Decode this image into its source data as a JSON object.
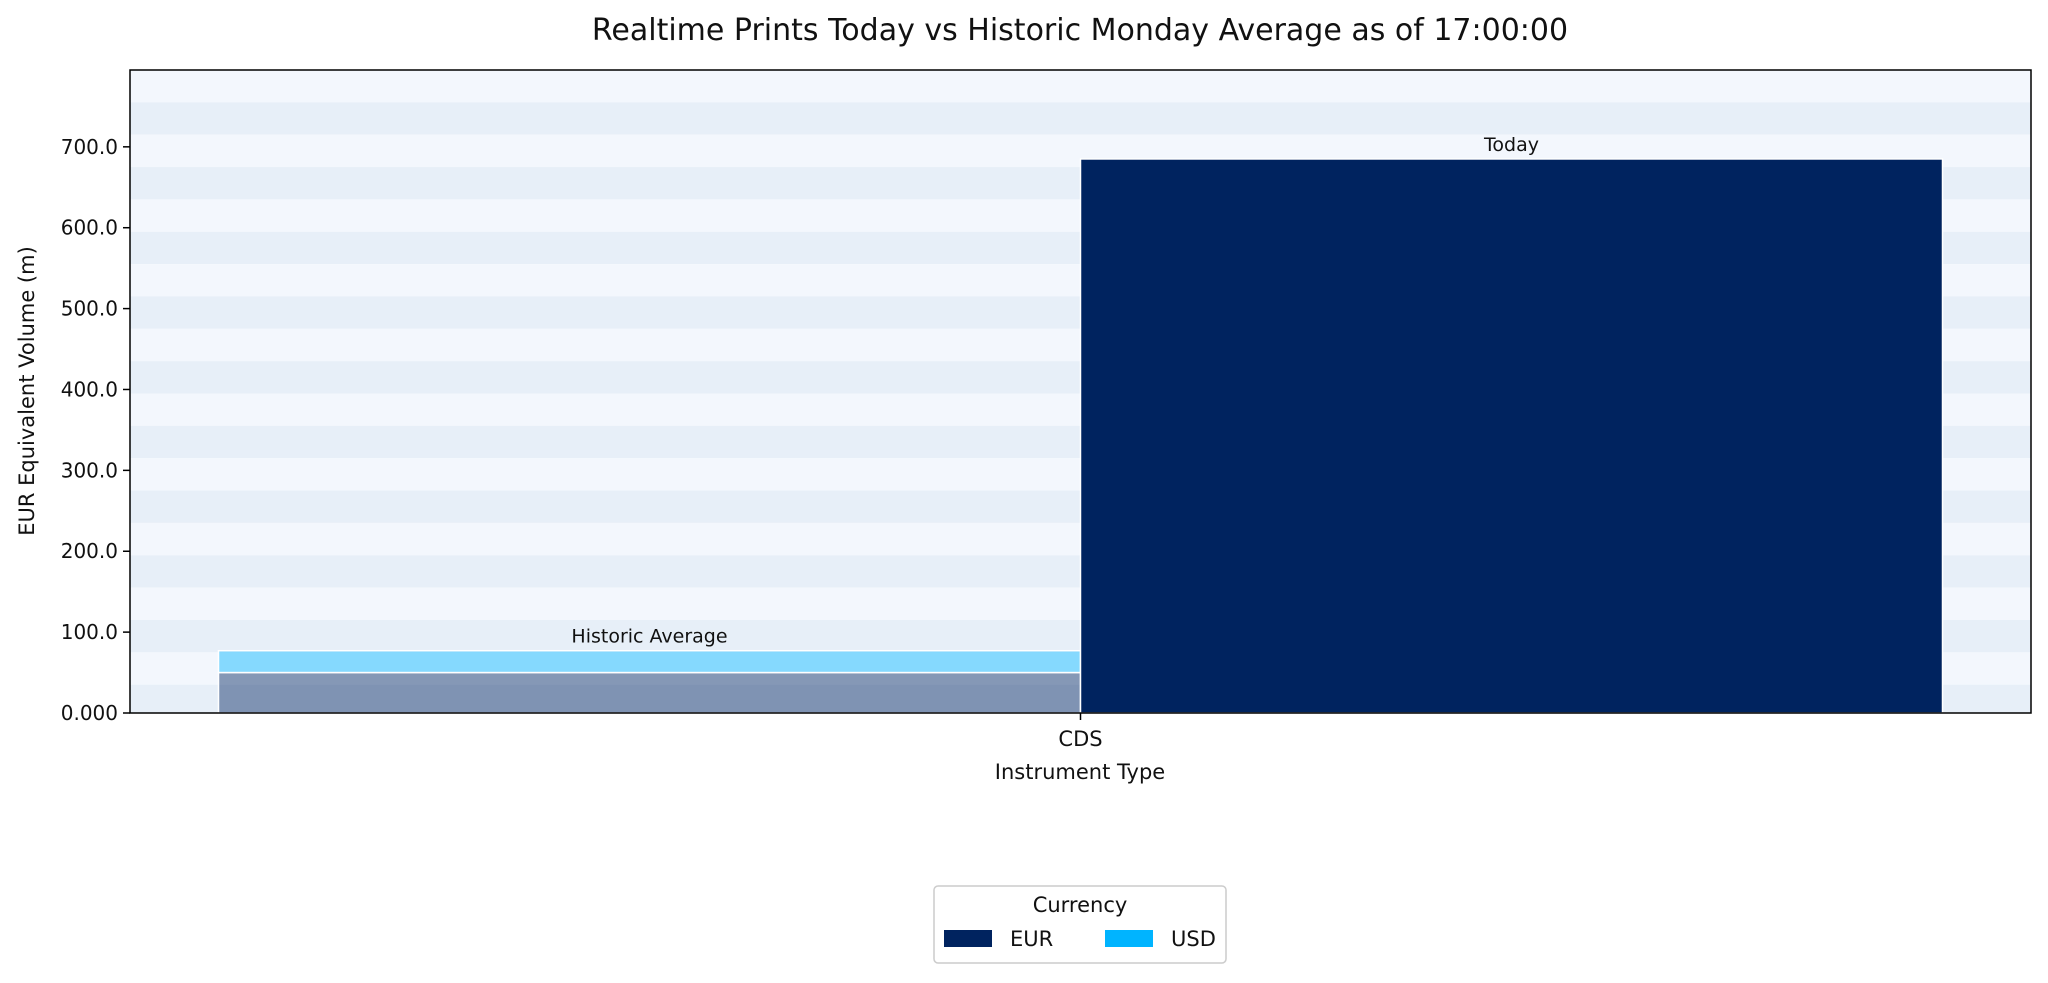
{
  "chart_data": {
    "type": "bar",
    "title": "Realtime Prints Today vs Historic Monday Average as of 17:00:00",
    "xlabel": "Instrument Type",
    "ylabel": "EUR Equivalent Volume (m)",
    "categories": [
      "CDS"
    ],
    "ylim": [
      0,
      795
    ],
    "yticks": [
      0,
      100,
      200,
      300,
      400,
      500,
      600,
      700
    ],
    "ytick_labels": [
      "0.000",
      "100.0",
      "200.0",
      "300.0",
      "400.0",
      "500.0",
      "600.0",
      "700.0"
    ],
    "grid": "alternating horizontal bands",
    "groups": [
      {
        "label": "Historic Average",
        "position": "left",
        "faded": true,
        "segments": [
          {
            "currency": "EUR",
            "value": 50
          },
          {
            "currency": "USD",
            "value": 27
          }
        ]
      },
      {
        "label": "Today",
        "position": "right",
        "faded": false,
        "segments": [
          {
            "currency": "EUR",
            "value": 685
          },
          {
            "currency": "USD",
            "value": 0
          }
        ]
      }
    ],
    "legend": {
      "title": "Currency",
      "placement": "bottom-center",
      "entries": [
        {
          "name": "EUR",
          "color": "#00235F"
        },
        {
          "name": "USD",
          "color": "#00B4FF"
        }
      ]
    },
    "colors": {
      "EUR": "#00235F",
      "USD": "#00B4FF",
      "band_light": "#F3F7FD",
      "band_dark": "#E7EFF8"
    }
  }
}
